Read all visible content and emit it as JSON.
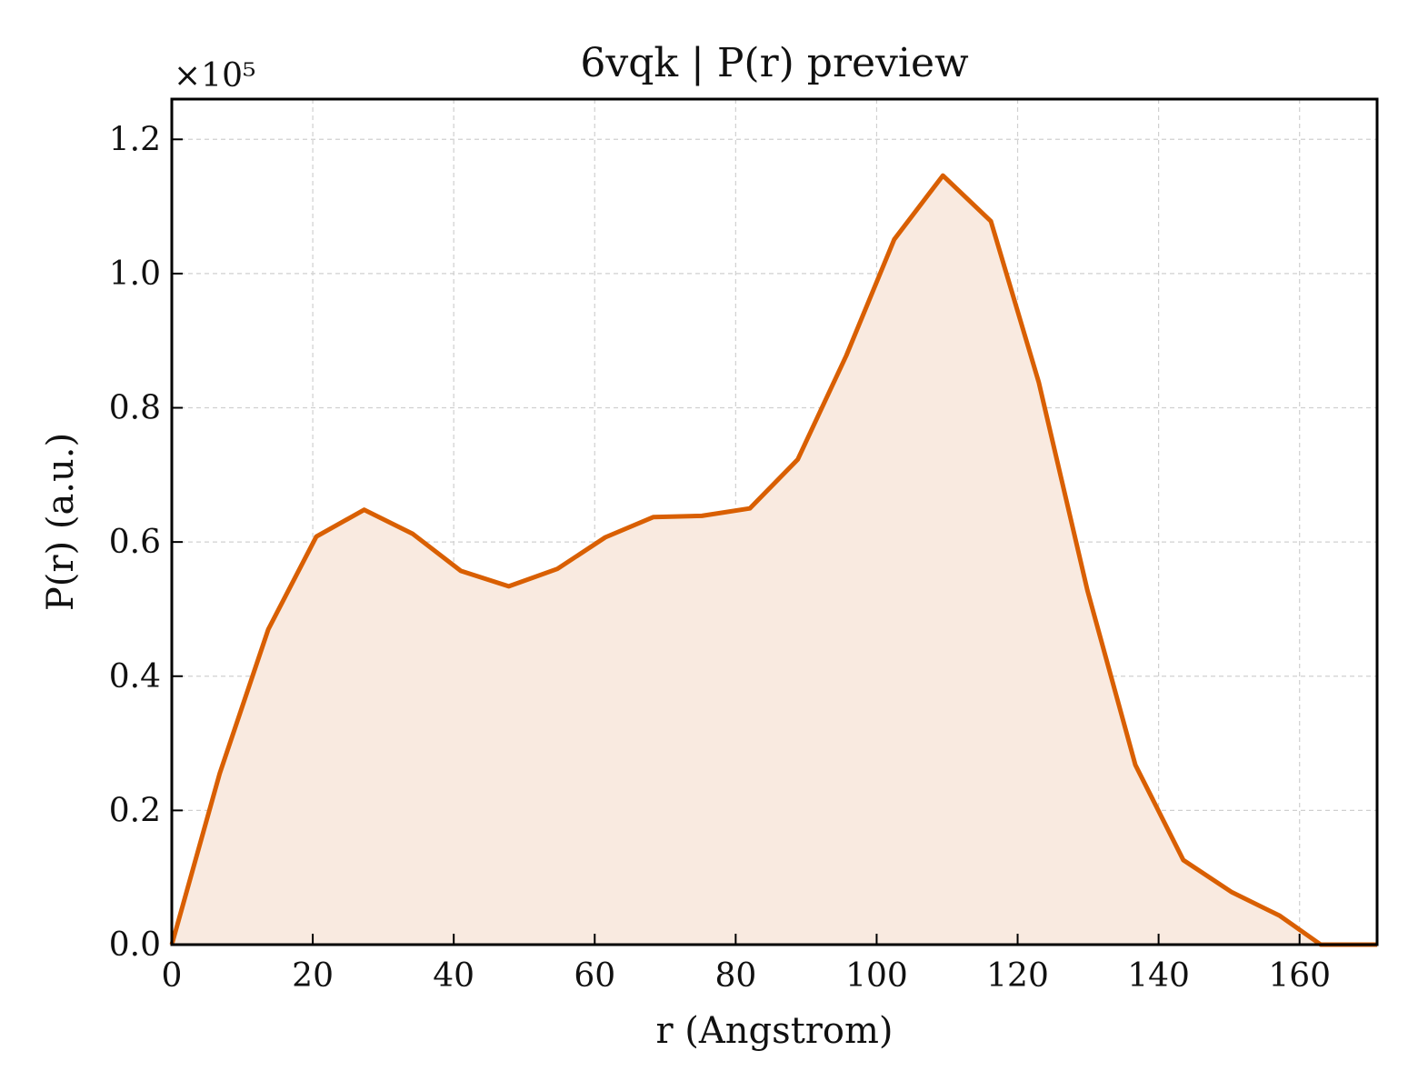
{
  "chart_data": {
    "type": "area",
    "title": "6vqk | P(r) preview",
    "xlabel": "r (Angstrom)",
    "ylabel": "P(r) (a.u.)",
    "y_multiplier": "×10⁵",
    "xlim": [
      0,
      171
    ],
    "ylim": [
      0,
      1.26
    ],
    "x_ticks": [
      0,
      20,
      40,
      60,
      80,
      100,
      120,
      140,
      160
    ],
    "y_ticks": [
      0.0,
      0.2,
      0.4,
      0.6,
      0.8,
      1.0,
      1.2
    ],
    "x_tick_labels": [
      "0",
      "20",
      "40",
      "60",
      "80",
      "100",
      "120",
      "140",
      "160"
    ],
    "y_tick_labels": [
      "0.0",
      "0.2",
      "0.4",
      "0.6",
      "0.8",
      "1.0",
      "1.2"
    ],
    "grid": true,
    "line_color": "#d95f02",
    "fill_color": "#f9eae0",
    "series": [
      {
        "x": [
          0,
          6.8,
          13.7,
          20.5,
          27.3,
          34.2,
          41.0,
          47.8,
          54.7,
          61.5,
          68.3,
          75.2,
          82.0,
          88.8,
          95.7,
          102.5,
          109.4,
          116.2,
          123.0,
          129.9,
          136.7,
          143.5,
          150.4,
          157.2,
          163.0,
          171.0
        ],
        "values": [
          0.0,
          0.255,
          0.47,
          0.608,
          0.648,
          0.612,
          0.557,
          0.534,
          0.56,
          0.607,
          0.637,
          0.639,
          0.65,
          0.723,
          0.878,
          1.051,
          1.146,
          1.078,
          0.838,
          0.528,
          0.268,
          0.126,
          0.078,
          0.043,
          0.0,
          0.0
        ]
      }
    ]
  }
}
